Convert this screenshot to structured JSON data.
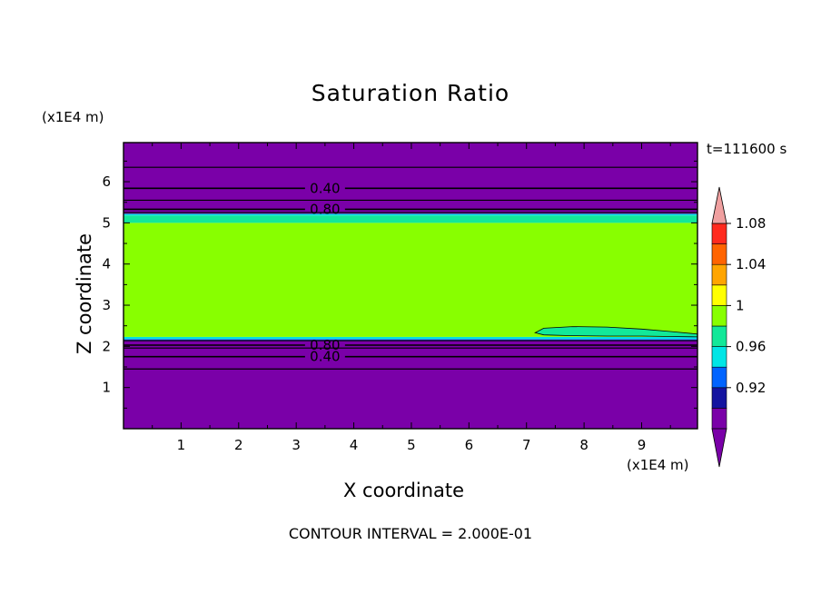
{
  "chart_data": {
    "type": "contour",
    "title": "Saturation Ratio",
    "xlabel": "X coordinate",
    "ylabel": "Z coordinate",
    "x_unit": "(x1E4 m)",
    "z_unit": "(x1E4 m)",
    "time_label": "t=111600 s",
    "footer": "CONTOUR INTERVAL = 2.000E-01",
    "xlim": [
      0,
      9.97
    ],
    "zlim": [
      0,
      6.95
    ],
    "x_ticks": [
      "1",
      "2",
      "3",
      "4",
      "5",
      "6",
      "7",
      "8",
      "9"
    ],
    "z_ticks": [
      "1",
      "2",
      "3",
      "4",
      "5",
      "6"
    ],
    "x_tick_values": [
      1,
      2,
      3,
      4,
      5,
      6,
      7,
      8,
      9
    ],
    "z_tick_values": [
      1,
      2,
      3,
      4,
      5,
      6
    ],
    "bands": [
      {
        "z0": 0.0,
        "z1": 2.15,
        "color": "#7a00a8"
      },
      {
        "z0": 2.15,
        "z1": 2.18,
        "color": "#1e6bff"
      },
      {
        "z0": 2.18,
        "z1": 2.23,
        "color": "#00e0e0"
      },
      {
        "z0": 2.23,
        "z1": 5.0,
        "color": "#88ff00"
      },
      {
        "z0": 5.0,
        "z1": 5.18,
        "color": "#12e899"
      },
      {
        "z0": 5.18,
        "z1": 5.22,
        "color": "#00e0e0"
      },
      {
        "z0": 5.22,
        "z1": 6.95,
        "color": "#7a00a8"
      }
    ],
    "blob": {
      "color": "#12e899",
      "x": [
        7.15,
        7.3,
        7.8,
        8.4,
        9.0,
        9.5,
        9.97,
        9.97,
        9.5,
        9.0,
        8.4,
        7.8,
        7.3,
        7.15
      ],
      "z": [
        2.33,
        2.44,
        2.48,
        2.47,
        2.42,
        2.36,
        2.3,
        2.23,
        2.24,
        2.25,
        2.25,
        2.26,
        2.28,
        2.33
      ]
    },
    "contour_lines": [
      {
        "z": 6.35,
        "label": ""
      },
      {
        "z": 5.84,
        "label": "0.40"
      },
      {
        "z": 5.55,
        "label": ""
      },
      {
        "z": 5.33,
        "label": "0.80"
      },
      {
        "z": 5.25,
        "label": ""
      },
      {
        "z": 2.14,
        "label": ""
      },
      {
        "z": 2.03,
        "label": "0.80"
      },
      {
        "z": 1.96,
        "label": ""
      },
      {
        "z": 1.75,
        "label": "0.40"
      },
      {
        "z": 1.45,
        "label": ""
      }
    ],
    "colorbar": {
      "levels": [
        {
          "color": "#7a00a8",
          "label": ""
        },
        {
          "color": "#1414a0",
          "label": "0.92"
        },
        {
          "color": "#0064ff",
          "label": ""
        },
        {
          "color": "#00e6e6",
          "label": "0.96"
        },
        {
          "color": "#12e899",
          "label": ""
        },
        {
          "color": "#88ff00",
          "label": "1"
        },
        {
          "color": "#ffff00",
          "label": ""
        },
        {
          "color": "#ffa500",
          "label": "1.04"
        },
        {
          "color": "#ff6400",
          "label": ""
        },
        {
          "color": "#ff2a1e",
          "label": "1.08"
        }
      ],
      "top_arrow_color": "#f0a0a0",
      "bottom_arrow_color": "#7a00a8"
    }
  }
}
